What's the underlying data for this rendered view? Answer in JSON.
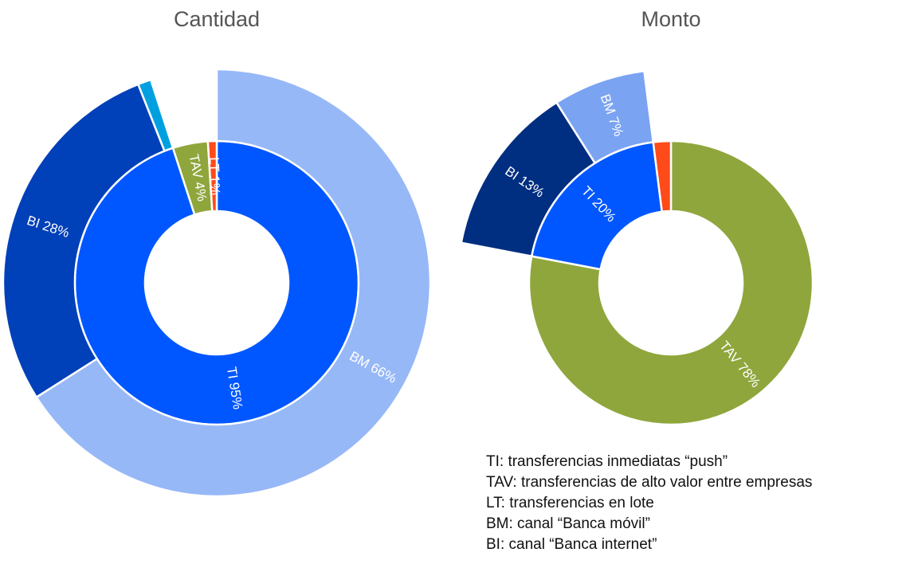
{
  "chart_data": [
    {
      "type": "sunburst",
      "title": "Cantidad",
      "inner": {
        "categories": [
          "TI",
          "TAV",
          "LT"
        ],
        "values": [
          95,
          4,
          1
        ],
        "value_labels": [
          "95%",
          "4%",
          "1%"
        ],
        "colors": [
          "#0057ff",
          "#8fa63c",
          "#ff4b1a"
        ]
      },
      "outer": {
        "parent": "TI",
        "categories": [
          "BM",
          "BI",
          null
        ],
        "values": [
          66,
          28,
          1
        ],
        "value_labels": [
          "66%",
          "28%",
          null
        ],
        "colors": [
          "#97b8f7",
          "#0040b8",
          "#00a0e0"
        ]
      }
    },
    {
      "type": "sunburst",
      "title": "Monto",
      "inner": {
        "categories": [
          "TAV",
          "TI",
          "LT"
        ],
        "values": [
          78,
          20,
          2
        ],
        "value_labels": [
          "78%",
          "20%",
          null
        ],
        "colors": [
          "#8fa63c",
          "#0057ff",
          "#ff4b1a"
        ]
      },
      "outer": {
        "parent": "TI",
        "categories": [
          "BI",
          "BM"
        ],
        "values": [
          13,
          7
        ],
        "value_labels": [
          "13%",
          "7%"
        ],
        "colors": [
          "#002e80",
          "#7aa3f2"
        ]
      }
    }
  ],
  "notes": [
    "TI: transferencias inmediatas “push”",
    "TAV: transferencias de alto valor entre empresas",
    "LT: transferencias en lote",
    "BM: canal “Banca móvil”",
    "BI: canal “Banca internet”"
  ]
}
